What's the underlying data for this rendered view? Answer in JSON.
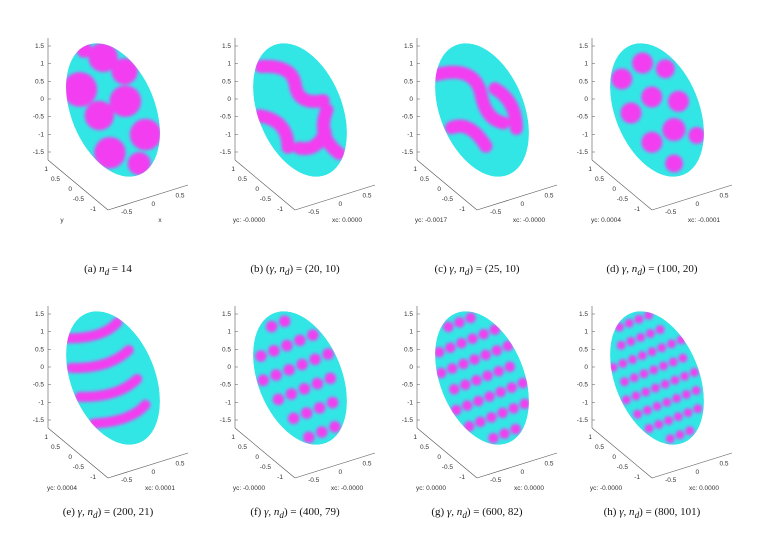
{
  "palette": {
    "base": "#33e6e6",
    "spot": "#f23cf0",
    "axis": "#555555"
  },
  "panels": [
    {
      "id": "a",
      "caption_prefix": "(a) ",
      "caption_math": "n",
      "caption_sub": "d",
      "caption_rest": " = 14",
      "ylabel": "y",
      "xlabel": "x",
      "spots": "large",
      "zticks": [
        "1.5",
        "1",
        "0.5",
        "0",
        "-0.5",
        "-1",
        "-1.5"
      ],
      "yticks": [
        "1",
        "0.5",
        "0",
        "-0.5",
        "-1"
      ],
      "xticks": [
        "-0.5",
        "0",
        "0.5"
      ]
    },
    {
      "id": "b",
      "caption_prefix": "(b) (",
      "caption_math": "γ, n",
      "caption_sub": "d",
      "caption_rest": ") = (20, 10)",
      "ylabel": "yc: -0.0000",
      "xlabel": "xc: 0.0000",
      "spots": "stripes",
      "zticks": [
        "1.5",
        "1",
        "0.5",
        "0",
        "-0.5",
        "-1",
        "-1.5"
      ],
      "yticks": [
        "1",
        "0.5",
        "0",
        "-0.5",
        "-1"
      ],
      "xticks": [
        "-0.5",
        "0",
        "0.5"
      ]
    },
    {
      "id": "c",
      "caption_prefix": "(c) ",
      "caption_math": "γ, n",
      "caption_sub": "d",
      "caption_rest": ") = (25, 10)",
      "ylabel": "yc: -0.0017",
      "xlabel": "xc: -0.0000",
      "spots": "stripes2",
      "zticks": [
        "1.5",
        "1",
        "0.5",
        "0",
        "-0.5",
        "-1",
        "-1.5"
      ],
      "yticks": [
        "1",
        "0.5",
        "0",
        "-0.5",
        "-1"
      ],
      "xticks": [
        "-0.5",
        "0",
        "0.5"
      ]
    },
    {
      "id": "d",
      "caption_prefix": "(d) ",
      "caption_math": "γ, n",
      "caption_sub": "d",
      "caption_rest": ") = (100, 20)",
      "ylabel": "yc: 0.0004",
      "xlabel": "xc: -0.0001",
      "spots": "medium",
      "zticks": [
        "1.5",
        "1",
        "0.5",
        "0",
        "-0.5",
        "-1",
        "-1.5"
      ],
      "yticks": [
        "1",
        "0.5",
        "0",
        "-0.5",
        "-1"
      ],
      "xticks": [
        "-0.5",
        "0",
        "0.5"
      ]
    },
    {
      "id": "e",
      "caption_prefix": "(e) ",
      "caption_math": "γ, n",
      "caption_sub": "d",
      "caption_rest": ") = (200, 21)",
      "ylabel": "yc: 0.0004",
      "xlabel": "xc: 0.0001",
      "spots": "bands",
      "zticks": [
        "1.5",
        "1",
        "0.5",
        "0",
        "-0.5",
        "-1",
        "-1.5"
      ],
      "yticks": [
        "1",
        "0.5",
        "0",
        "-0.5",
        "-1"
      ],
      "xticks": [
        "-0.5",
        "0",
        "0.5"
      ]
    },
    {
      "id": "f",
      "caption_prefix": "(f) ",
      "caption_math": "γ, n",
      "caption_sub": "d",
      "caption_rest": ") = (400, 79)",
      "ylabel": "yc: -0.0000",
      "xlabel": "xc: -0.0000",
      "spots": "small",
      "zticks": [
        "1.5",
        "1",
        "0.5",
        "0",
        "-0.5",
        "-1",
        "-1.5"
      ],
      "yticks": [
        "1",
        "0.5",
        "0",
        "-0.5",
        "-1"
      ],
      "xticks": [
        "-0.5",
        "0",
        "0.5"
      ]
    },
    {
      "id": "g",
      "caption_prefix": "(g) ",
      "caption_math": "γ, n",
      "caption_sub": "d",
      "caption_rest": ") = (600, 82)",
      "ylabel": "yc: 0.0000",
      "xlabel": "xc: 0.0000",
      "spots": "small2",
      "zticks": [
        "1.5",
        "1",
        "0.5",
        "0",
        "-0.5",
        "-1",
        "-1.5"
      ],
      "yticks": [
        "1",
        "0.5",
        "0",
        "-0.5",
        "-1"
      ],
      "xticks": [
        "-0.5",
        "0",
        "0.5"
      ]
    },
    {
      "id": "h",
      "caption_prefix": "(h) ",
      "caption_math": "γ, n",
      "caption_sub": "d",
      "caption_rest": ") = (800, 101)",
      "ylabel": "yc: -0.0000",
      "xlabel": "xc: 0.0000",
      "spots": "tiny",
      "zticks": [
        "1.5",
        "1",
        "0.5",
        "0",
        "-0.5",
        "-1",
        "-1.5"
      ],
      "yticks": [
        "1",
        "0.5",
        "0",
        "-0.5",
        "-1"
      ],
      "xticks": [
        "-0.5",
        "0",
        "0.5"
      ]
    }
  ]
}
